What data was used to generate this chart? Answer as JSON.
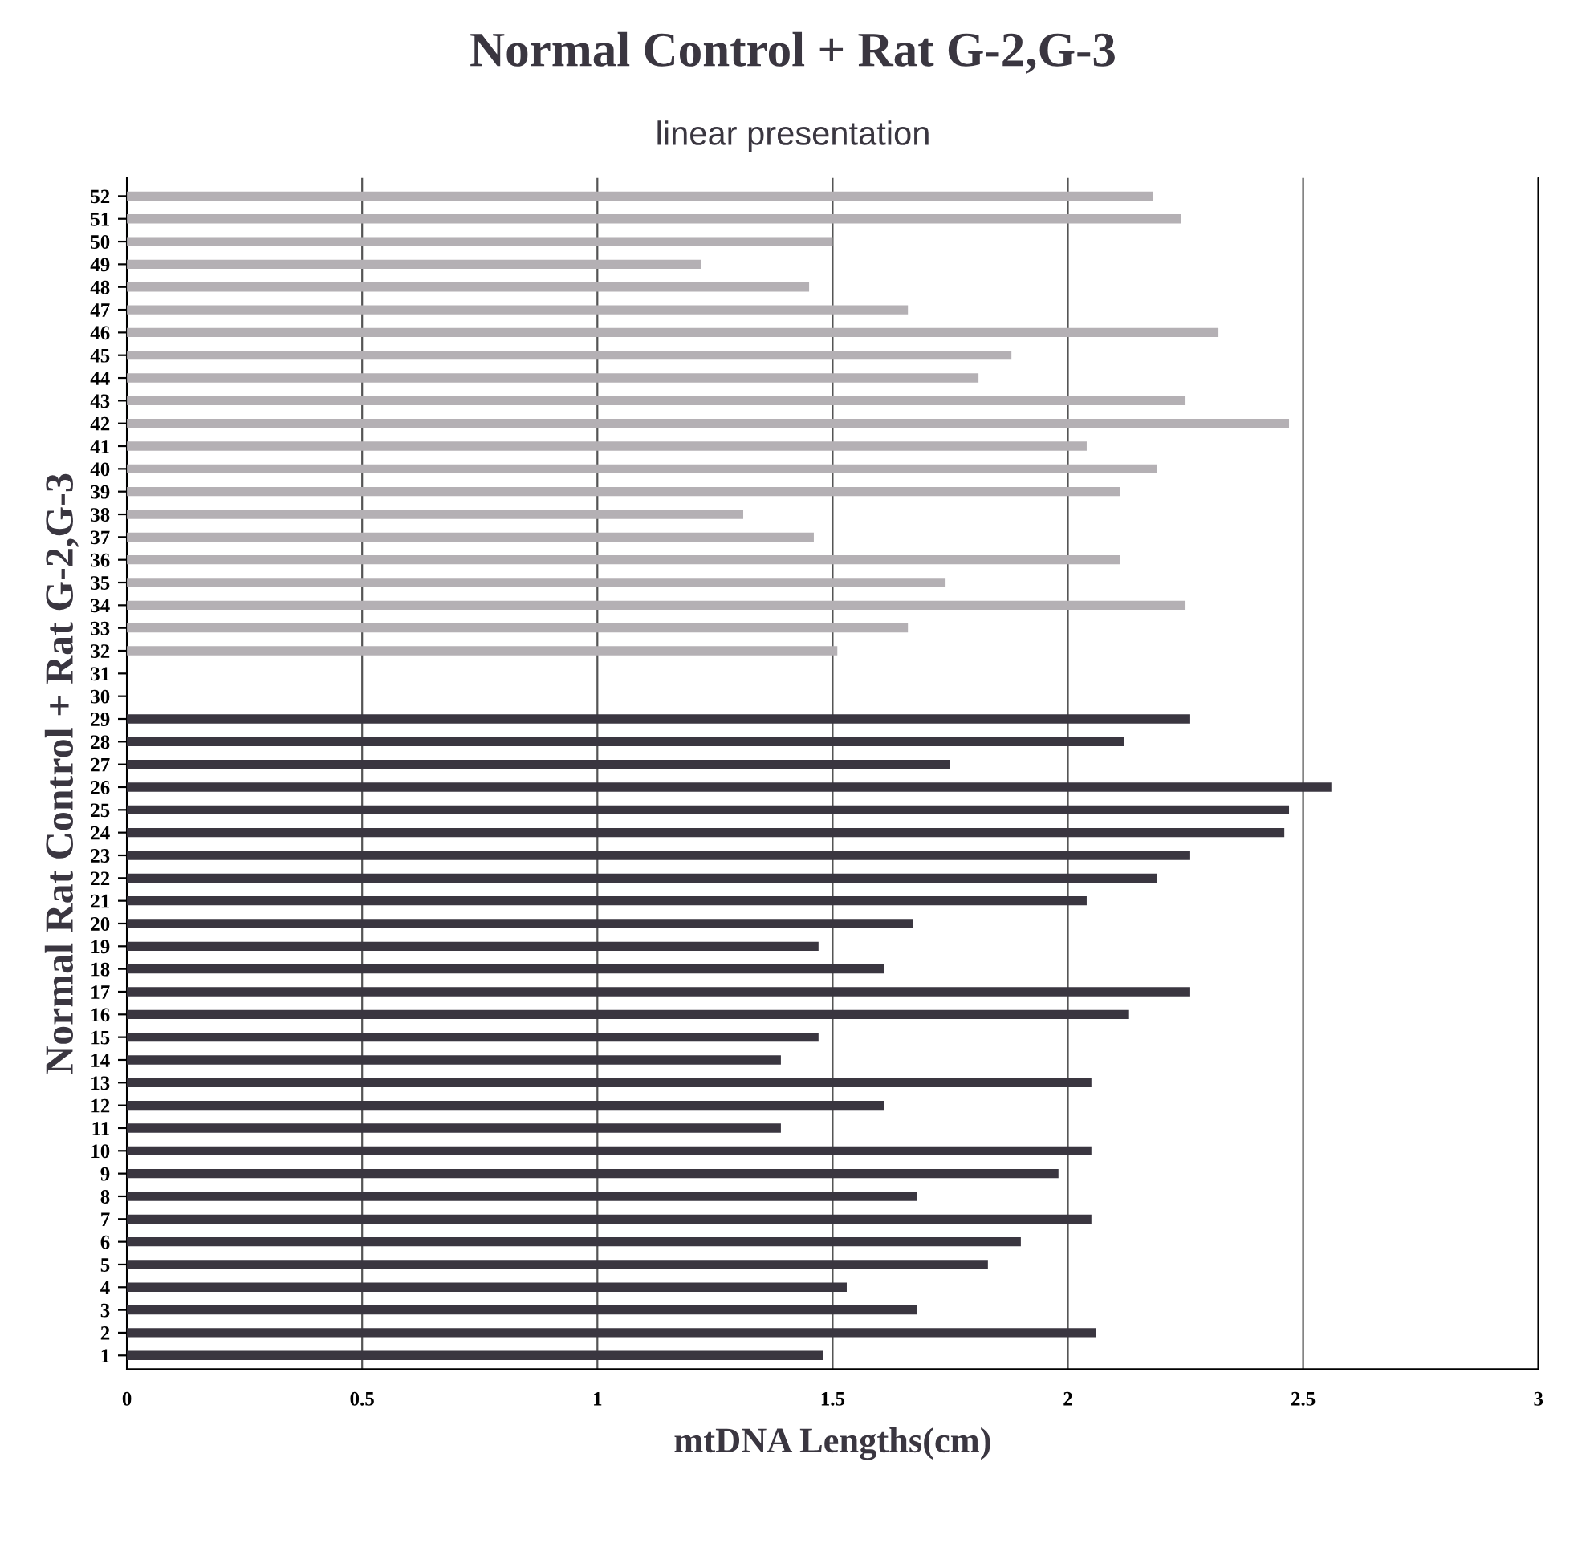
{
  "chart_data": {
    "type": "bar",
    "orientation": "horizontal",
    "title": "Normal Control + Rat G-2,G-3",
    "subtitle": "linear presentation",
    "xlabel": "mtDNA Lengths(cm)",
    "ylabel": "Normal Rat Control + Rat G-2,G-3",
    "categories": [
      "52",
      "51",
      "50",
      "49",
      "48",
      "47",
      "46",
      "45",
      "44",
      "43",
      "42",
      "41",
      "40",
      "39",
      "38",
      "37",
      "36",
      "35",
      "34",
      "33",
      "32",
      "31",
      "30",
      "29",
      "28",
      "27",
      "26",
      "25",
      "24",
      "23",
      "22",
      "21",
      "20",
      "19",
      "18",
      "17",
      "16",
      "15",
      "14",
      "13",
      "12",
      "11",
      "10",
      "9",
      "8",
      "7",
      "6",
      "5",
      "4",
      "3",
      "2",
      "1"
    ],
    "values": [
      2.18,
      2.24,
      1.5,
      1.22,
      1.45,
      1.66,
      2.32,
      1.88,
      1.81,
      2.25,
      2.47,
      2.04,
      2.19,
      2.11,
      1.31,
      1.46,
      2.11,
      1.74,
      2.25,
      1.66,
      1.51,
      null,
      null,
      2.26,
      2.12,
      1.75,
      2.56,
      2.47,
      2.46,
      2.26,
      2.19,
      2.04,
      1.67,
      1.47,
      1.61,
      2.26,
      2.13,
      1.47,
      1.39,
      2.05,
      1.61,
      1.39,
      2.05,
      1.98,
      1.68,
      2.05,
      1.9,
      1.83,
      1.53,
      1.68,
      2.06,
      1.48
    ],
    "colors": [
      "#b4b0b4",
      "#b4b0b4",
      "#b4b0b4",
      "#b4b0b4",
      "#b4b0b4",
      "#b4b0b4",
      "#b4b0b4",
      "#b4b0b4",
      "#b4b0b4",
      "#b4b0b4",
      "#b4b0b4",
      "#b4b0b4",
      "#b4b0b4",
      "#b4b0b4",
      "#b4b0b4",
      "#b4b0b4",
      "#b4b0b4",
      "#b4b0b4",
      "#b4b0b4",
      "#b4b0b4",
      "#b4b0b4",
      "#b4b0b4",
      "#b4b0b4",
      "#3a3640",
      "#3a3640",
      "#3a3640",
      "#3a3640",
      "#3a3640",
      "#3a3640",
      "#3a3640",
      "#3a3640",
      "#3a3640",
      "#3a3640",
      "#3a3640",
      "#3a3640",
      "#3a3640",
      "#3a3640",
      "#3a3640",
      "#3a3640",
      "#3a3640",
      "#3a3640",
      "#3a3640",
      "#3a3640",
      "#3a3640",
      "#3a3640",
      "#3a3640",
      "#3a3640",
      "#3a3640",
      "#3a3640",
      "#3a3640",
      "#3a3640",
      "#3a3640"
    ],
    "xlim": [
      0,
      3
    ],
    "xticks": [
      0,
      0.5,
      1,
      1.5,
      2,
      2.5,
      3
    ],
    "grid": "x"
  }
}
